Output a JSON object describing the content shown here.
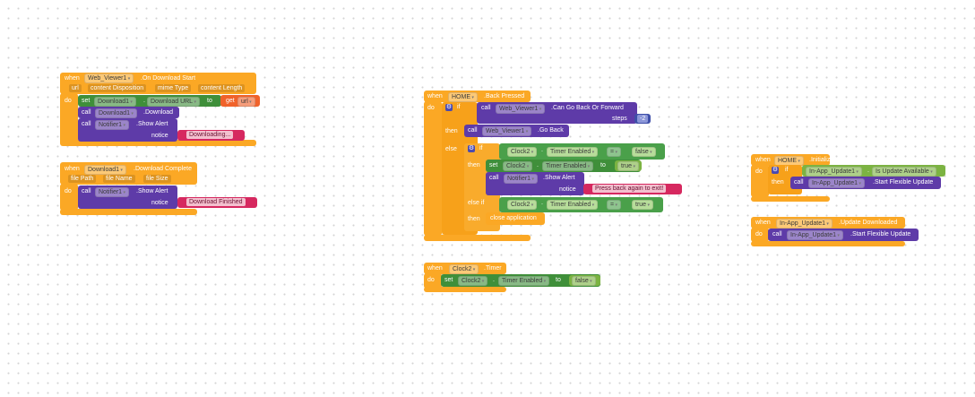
{
  "colors": {
    "event": "#fba825",
    "procedure": "#5e3ba8",
    "setter": "#3f8f3a",
    "getter": "#7cb342",
    "text": "#d6285f",
    "variable": "#f0622a",
    "math": "#3f4fa8"
  },
  "download_start": {
    "when": "when",
    "component": "Web_Viewer1",
    "event": ".On Download Start",
    "params": [
      "url",
      "content Disposition",
      "mime Type",
      "content Length"
    ],
    "do": "do",
    "set": "set",
    "set_component": "Download1",
    "dot": ".",
    "property": "Download URL",
    "to": "to",
    "get": "get",
    "get_var": "url",
    "call1": "call",
    "call1_component": "Download1",
    "call1_method": ".Download",
    "call2": "call",
    "call2_component": "Notifier1",
    "call2_method": ".Show Alert",
    "notice": "notice",
    "text": "Downloading..."
  },
  "download_complete": {
    "when": "when",
    "component": "Download1",
    "event": ".Download Complete",
    "params": [
      "file Path",
      "file Name",
      "file Size"
    ],
    "do": "do",
    "call": "call",
    "call_component": "Notifier1",
    "call_method": ".Show Alert",
    "notice": "notice",
    "text": "Download Finished"
  },
  "back_pressed": {
    "when": "when",
    "component": "HOME",
    "event": ".Back Pressed",
    "do": "do",
    "if": "if",
    "call1": "call",
    "call1_component": "Web_Viewer1",
    "call1_method": ".Can Go Back Or Forward",
    "steps": "steps",
    "steps_value": "-2",
    "then": "then",
    "call2": "call",
    "call2_component": "Web_Viewer1",
    "call2_method": ".Go Back",
    "else": "else",
    "if2": "if",
    "cmp1_component": "Clock2",
    "dot": ".",
    "cmp1_property": "Timer Enabled",
    "cmp1_op": "=",
    "cmp1_value": "false",
    "then2": "then",
    "set": "set",
    "set_component": "Clock2",
    "set_property": "Timer Enabled",
    "to": "to",
    "set_value": "true",
    "call3": "call",
    "call3_component": "Notifier1",
    "call3_method": ".Show Alert",
    "notice": "notice",
    "text": "Press back again to exit!",
    "else_if": "else if",
    "cmp2_component": "Clock2",
    "cmp2_property": "Timer Enabled",
    "cmp2_op": "=",
    "cmp2_value": "true",
    "then3": "then",
    "close": "close application"
  },
  "clock_timer": {
    "when": "when",
    "component": "Clock2",
    "event": ".Timer",
    "do": "do",
    "set": "set",
    "set_component": "Clock2",
    "dot": ".",
    "property": "Timer Enabled",
    "to": "to",
    "value": "false"
  },
  "initialize": {
    "when": "when",
    "component": "HOME",
    "event": ".Initialize",
    "do": "do",
    "if": "if",
    "getter_component": "In-App_Update1",
    "dot": ".",
    "getter_property": "Is Update Available",
    "then": "then",
    "call": "call",
    "call_component": "In-App_Update1",
    "call_method": ".Start Flexible Update"
  },
  "update_downloaded": {
    "when": "when",
    "component": "In-App_Update1",
    "event": ".Update Downloaded",
    "do": "do",
    "call": "call",
    "call_component": "In-App_Update1",
    "call_method": ".Start Flexible Update"
  }
}
